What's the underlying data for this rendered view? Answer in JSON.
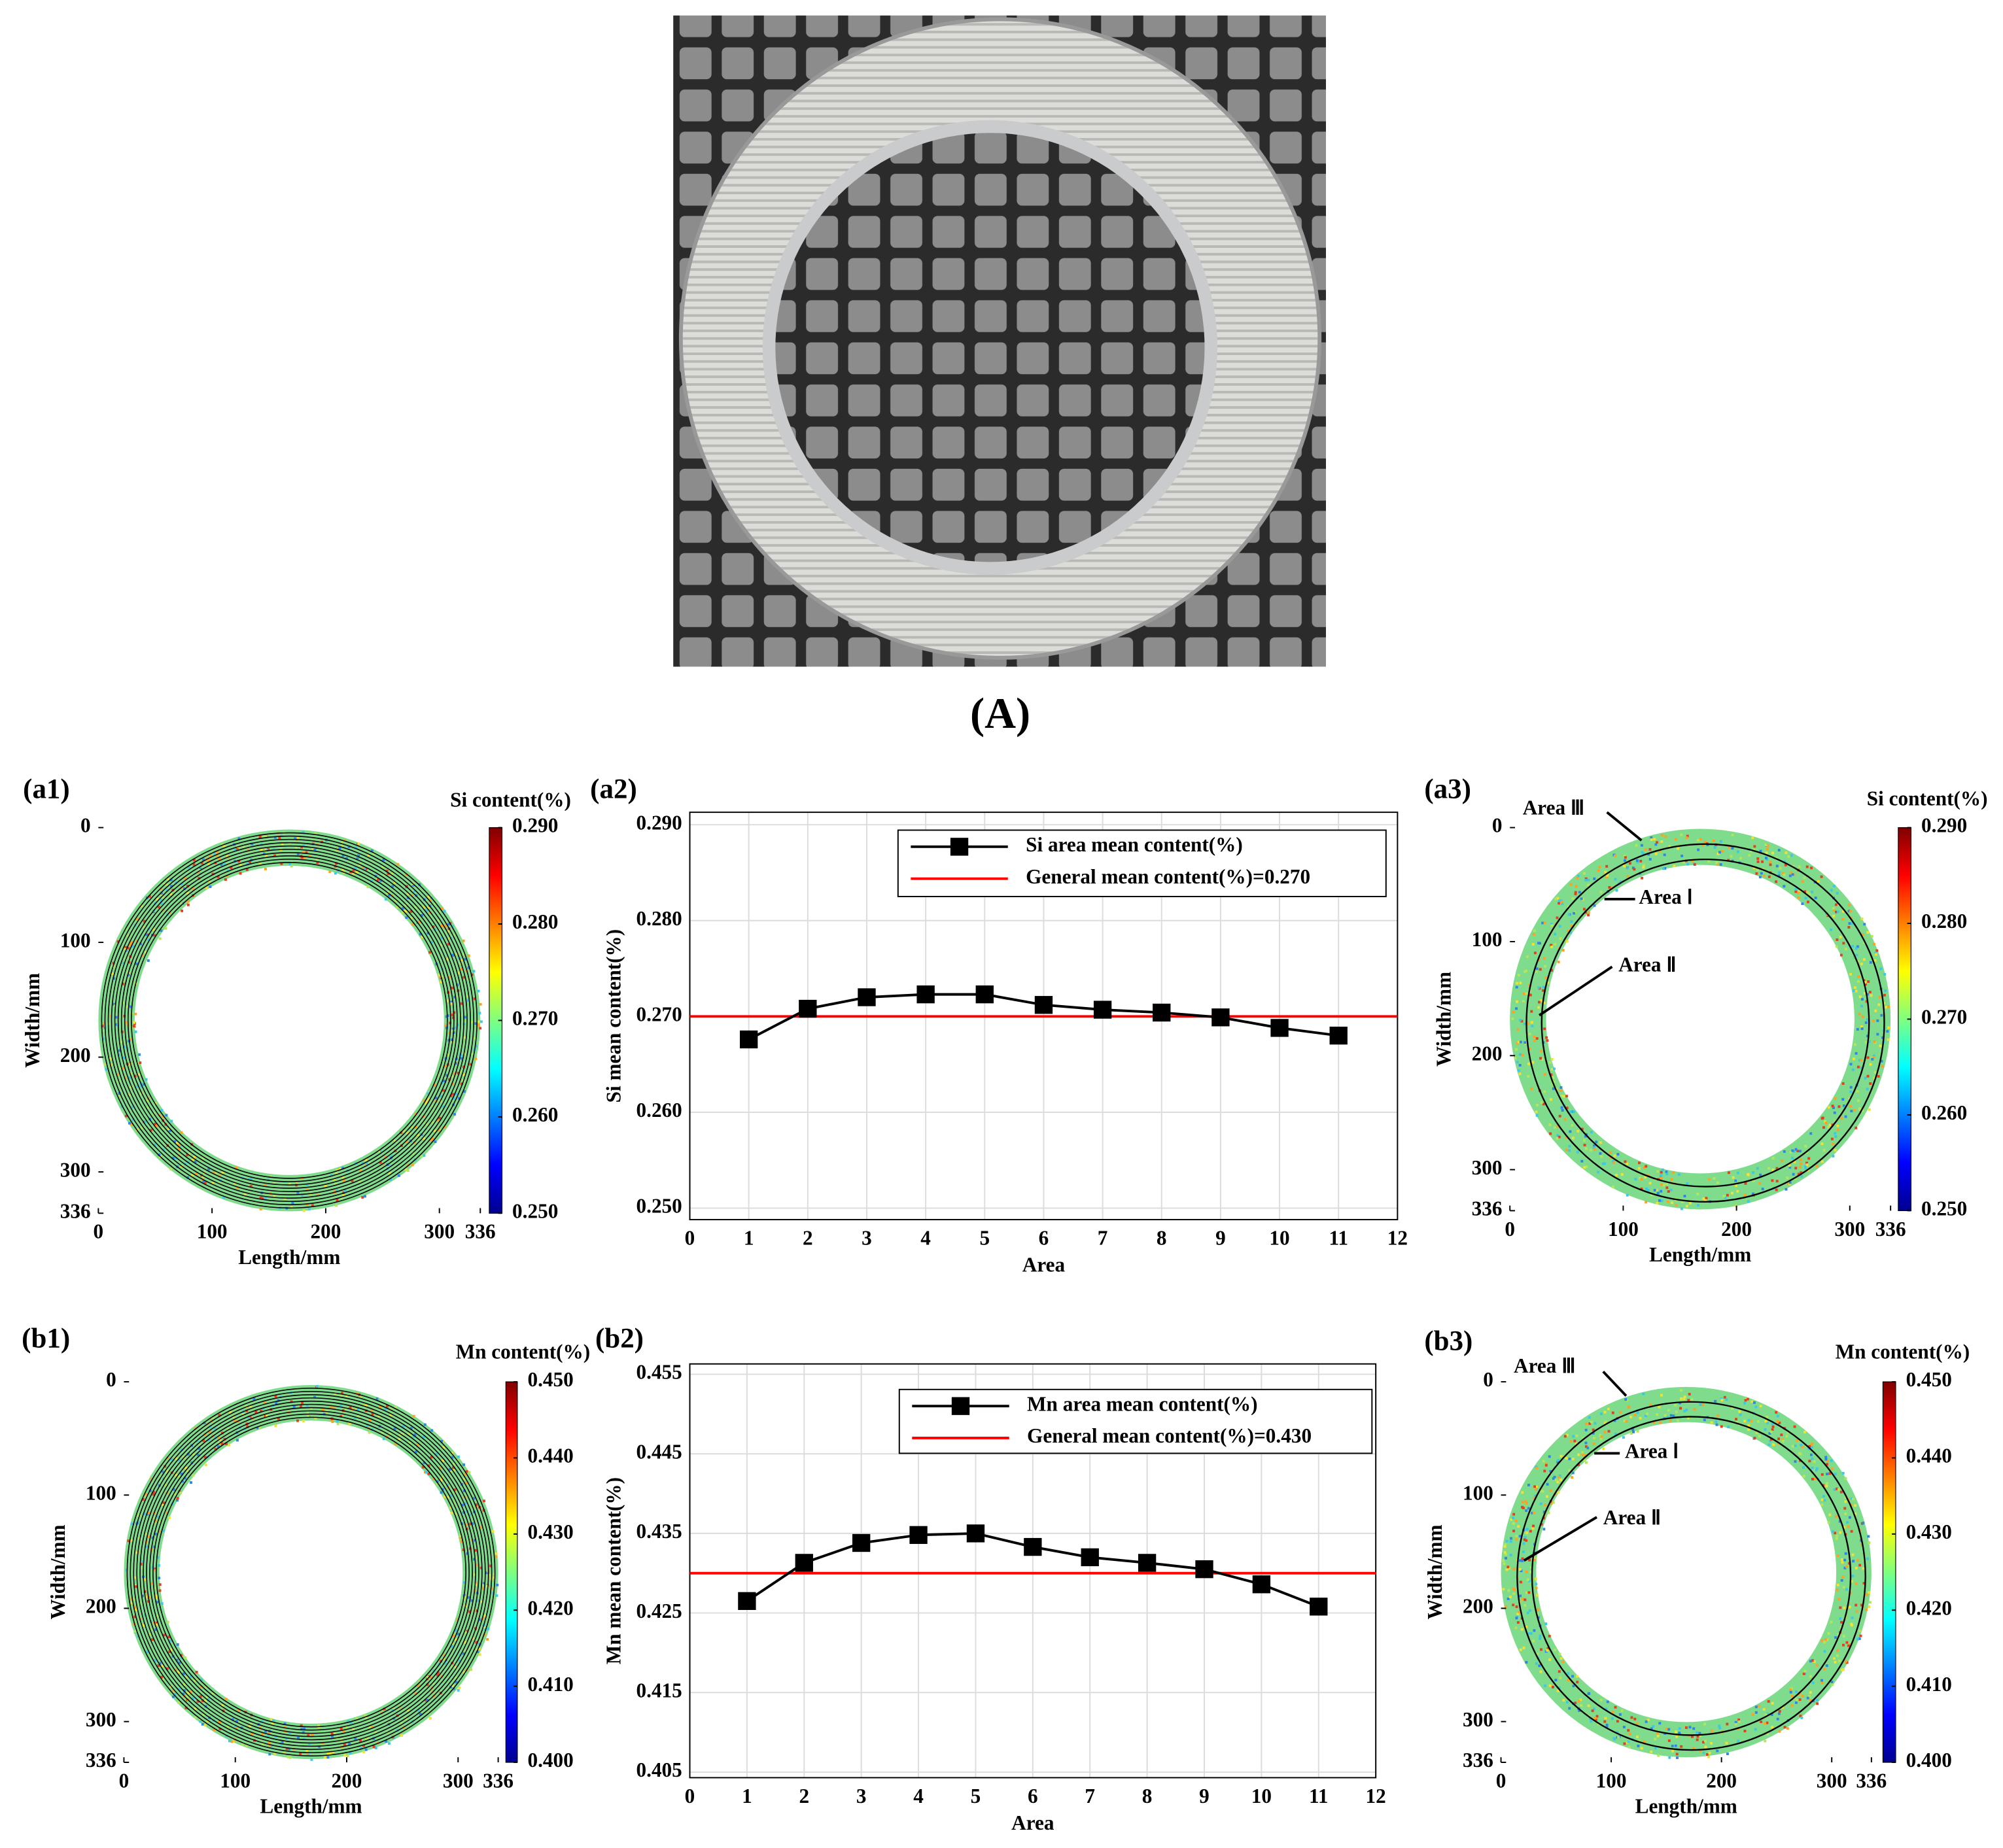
{
  "figure_label": "(A)",
  "chart_data": [
    {
      "type": "heatmap",
      "panel": "(a1)",
      "colorbar_label": "Si content(%)",
      "xlabel": "Length/mm",
      "ylabel": "Width/mm",
      "xlim": [
        0,
        336
      ],
      "xticks": [
        0,
        100,
        200,
        300,
        336
      ],
      "ylim": [
        0,
        336
      ],
      "yticks": [
        0,
        100,
        200,
        300,
        336
      ],
      "colormap": "jet",
      "clim": [
        0.25,
        0.29
      ],
      "cticks": [
        {
          "value": 0.25,
          "label": "0.250"
        },
        {
          "value": 0.26,
          "label": "0.260"
        },
        {
          "value": 0.27,
          "label": "0.270"
        },
        {
          "value": 0.28,
          "label": "0.280"
        },
        {
          "value": 0.29,
          "label": "0.290"
        }
      ]
    },
    {
      "type": "line",
      "panel": "(a2)",
      "xlabel": "Area",
      "ylabel": "Si mean content(%)",
      "x": [
        1,
        2,
        3,
        4,
        5,
        6,
        7,
        8,
        9,
        10,
        11
      ],
      "series": [
        {
          "name": "Si area mean content(%)",
          "color": "#000000",
          "values": [
            0.2676,
            0.2708,
            0.272,
            0.2723,
            0.2723,
            0.2712,
            0.2707,
            0.2704,
            0.2699,
            0.2688,
            0.268
          ]
        }
      ],
      "reference_line": {
        "name": "General mean content(%)=0.270",
        "value": 0.27,
        "color": "#ff0000"
      },
      "xlim": [
        0,
        12
      ],
      "xticks": [
        0,
        1,
        2,
        3,
        4,
        5,
        6,
        7,
        8,
        9,
        10,
        11,
        12
      ],
      "ylim": [
        0.2488,
        0.2913
      ],
      "yticks": [
        {
          "value": 0.25,
          "label": "0.250"
        },
        {
          "value": 0.26,
          "label": "0.260"
        },
        {
          "value": 0.27,
          "label": "0.270"
        },
        {
          "value": 0.28,
          "label": "0.280"
        },
        {
          "value": 0.29,
          "label": "0.290"
        }
      ],
      "grid": true
    },
    {
      "type": "heatmap",
      "panel": "(a3)",
      "colorbar_label": "Si content(%)",
      "xlabel": "Length/mm",
      "ylabel": "Width/mm",
      "xlim": [
        0,
        336
      ],
      "xticks": [
        0,
        100,
        200,
        300,
        336
      ],
      "ylim": [
        0,
        336
      ],
      "yticks": [
        0,
        100,
        200,
        300,
        336
      ],
      "colormap": "jet",
      "clim": [
        0.25,
        0.29
      ],
      "cticks": [
        {
          "value": 0.25,
          "label": "0.250"
        },
        {
          "value": 0.26,
          "label": "0.260"
        },
        {
          "value": 0.27,
          "label": "0.270"
        },
        {
          "value": 0.28,
          "label": "0.280"
        },
        {
          "value": 0.29,
          "label": "0.290"
        }
      ],
      "annotations": [
        "Area Ⅲ",
        "Area Ⅰ",
        "Area Ⅱ"
      ]
    },
    {
      "type": "heatmap",
      "panel": "(b1)",
      "colorbar_label": "Mn content(%)",
      "xlabel": "Length/mm",
      "ylabel": "Width/mm",
      "xlim": [
        0,
        336
      ],
      "xticks": [
        0,
        100,
        200,
        300,
        336
      ],
      "ylim": [
        0,
        336
      ],
      "yticks": [
        0,
        100,
        200,
        300,
        336
      ],
      "colormap": "jet",
      "clim": [
        0.4,
        0.45
      ],
      "cticks": [
        {
          "value": 0.4,
          "label": "0.400"
        },
        {
          "value": 0.41,
          "label": "0.410"
        },
        {
          "value": 0.42,
          "label": "0.420"
        },
        {
          "value": 0.43,
          "label": "0.430"
        },
        {
          "value": 0.44,
          "label": "0.440"
        },
        {
          "value": 0.45,
          "label": "0.450"
        }
      ]
    },
    {
      "type": "line",
      "panel": "(b2)",
      "xlabel": "Area",
      "ylabel": "Mn mean content(%)",
      "x": [
        1,
        2,
        3,
        4,
        5,
        6,
        7,
        8,
        9,
        10,
        11
      ],
      "series": [
        {
          "name": "Mn area mean content(%)",
          "color": "#000000",
          "values": [
            0.4265,
            0.4313,
            0.4338,
            0.4348,
            0.435,
            0.4333,
            0.432,
            0.4313,
            0.4305,
            0.4286,
            0.4258
          ]
        }
      ],
      "reference_line": {
        "name": "General mean content(%)=0.430",
        "value": 0.43,
        "color": "#ff0000"
      },
      "xlim": [
        0,
        12
      ],
      "xticks": [
        0,
        1,
        2,
        3,
        4,
        5,
        6,
        7,
        8,
        9,
        10,
        11,
        12
      ],
      "ylim": [
        0.4043,
        0.4563
      ],
      "yticks": [
        {
          "value": 0.405,
          "label": "0.405"
        },
        {
          "value": 0.415,
          "label": "0.415"
        },
        {
          "value": 0.425,
          "label": "0.425"
        },
        {
          "value": 0.435,
          "label": "0.435"
        },
        {
          "value": 0.445,
          "label": "0.445"
        },
        {
          "value": 0.455,
          "label": "0.455"
        }
      ],
      "grid": true
    },
    {
      "type": "heatmap",
      "panel": "(b3)",
      "colorbar_label": "Mn content(%)",
      "xlabel": "Length/mm",
      "ylabel": "Width/mm",
      "xlim": [
        0,
        336
      ],
      "xticks": [
        0,
        100,
        200,
        300,
        336
      ],
      "ylim": [
        0,
        336
      ],
      "yticks": [
        0,
        100,
        200,
        300,
        336
      ],
      "colormap": "jet",
      "clim": [
        0.4,
        0.45
      ],
      "cticks": [
        {
          "value": 0.4,
          "label": "0.400"
        },
        {
          "value": 0.41,
          "label": "0.410"
        },
        {
          "value": 0.42,
          "label": "0.420"
        },
        {
          "value": 0.43,
          "label": "0.430"
        },
        {
          "value": 0.44,
          "label": "0.440"
        },
        {
          "value": 0.45,
          "label": "0.450"
        }
      ],
      "annotations": [
        "Area Ⅲ",
        "Area Ⅰ",
        "Area Ⅱ"
      ]
    }
  ]
}
